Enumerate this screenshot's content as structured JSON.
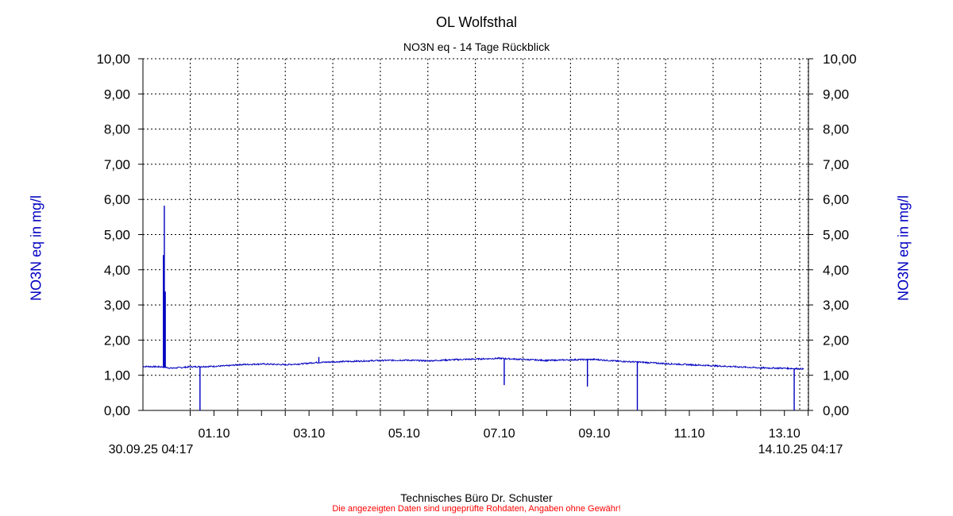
{
  "chart_data": {
    "type": "line",
    "title": "OL Wolfsthal",
    "subtitle": "NO3N eq - 14 Tage Rückblick",
    "ylabel": "NO3N eq in mg/l",
    "ylim": [
      0,
      10
    ],
    "y_ticks": [
      "0,00",
      "1,00",
      "2,00",
      "3,00",
      "4,00",
      "5,00",
      "6,00",
      "7,00",
      "8,00",
      "9,00",
      "10,00"
    ],
    "x_start": "30.09.25 04:17",
    "x_end": "14.10.25 04:17",
    "x_tick_labels": [
      "01.10",
      "03.10",
      "05.10",
      "07.10",
      "09.10",
      "11.10",
      "13.10"
    ],
    "grid": true,
    "line_color": "#0000c0",
    "series": [
      {
        "x_days": [
          0,
          0.4,
          0.6,
          0.8,
          1.0,
          1.4,
          1.8,
          2.0,
          2.5,
          3.0,
          3.4,
          3.6,
          4.0,
          4.5,
          5.0,
          5.5,
          6.0,
          6.5,
          7.0,
          7.5,
          8.0,
          8.5,
          9.0,
          9.5,
          10.0,
          10.5,
          11.0,
          11.5,
          12.0,
          12.5,
          13.0,
          13.5,
          13.9
        ],
        "values": [
          1.25,
          1.24,
          1.2,
          1.22,
          1.24,
          1.25,
          1.27,
          1.3,
          1.32,
          1.3,
          1.33,
          1.36,
          1.38,
          1.4,
          1.42,
          1.43,
          1.41,
          1.44,
          1.46,
          1.48,
          1.45,
          1.42,
          1.44,
          1.45,
          1.4,
          1.37,
          1.33,
          1.3,
          1.27,
          1.24,
          1.21,
          1.2,
          1.18
        ]
      }
    ],
    "spikes": [
      {
        "x_days": 0.45,
        "value": 5.82
      },
      {
        "x_days": 0.43,
        "value": 4.42
      },
      {
        "x_days": 0.47,
        "value": 3.38
      },
      {
        "x_days": 1.2,
        "value": 0.0
      },
      {
        "x_days": 3.7,
        "value": 1.52
      },
      {
        "x_days": 7.6,
        "value": 0.72
      },
      {
        "x_days": 9.35,
        "value": 0.68
      },
      {
        "x_days": 10.4,
        "value": 0.0
      },
      {
        "x_days": 13.7,
        "value": 0.0
      }
    ]
  },
  "footer": {
    "company": "Technisches Büro Dr. Schuster",
    "disclaimer": "Die angezeigten Daten sind ungeprüfte Rohdaten, Angaben ohne Gewähr!"
  }
}
